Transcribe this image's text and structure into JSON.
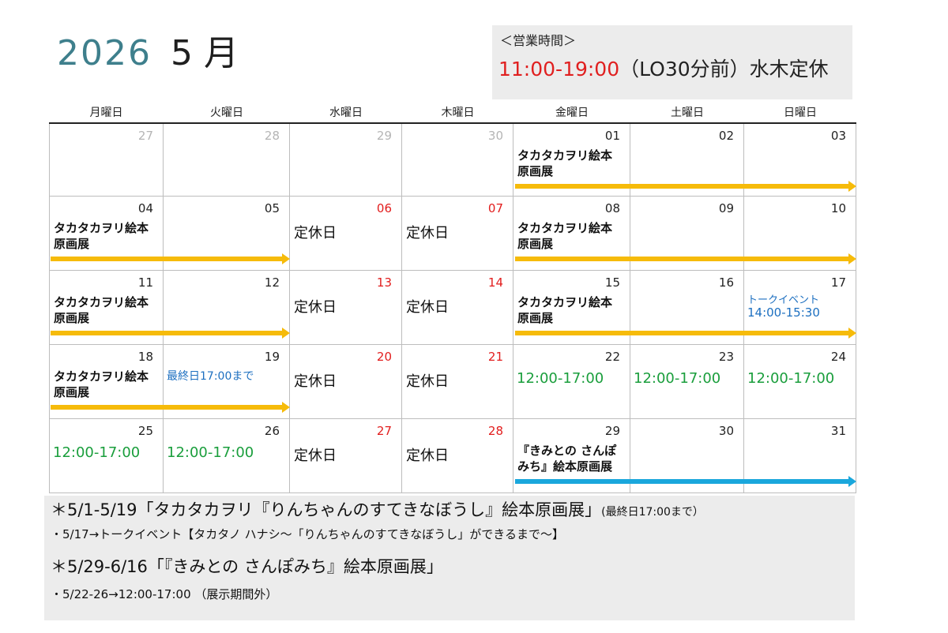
{
  "header": {
    "year": "2026",
    "month": "5 月",
    "hours_label": "＜営業時間＞",
    "hours_time": "11:00-19:00",
    "hours_note": "（LO30分前）水木定休"
  },
  "weekdays": [
    "月曜日",
    "火曜日",
    "水曜日",
    "木曜日",
    "金曜日",
    "土曜日",
    "日曜日"
  ],
  "weeks": [
    [
      {
        "day": "27",
        "style": "grey"
      },
      {
        "day": "28",
        "style": "grey"
      },
      {
        "day": "29",
        "style": "grey"
      },
      {
        "day": "30",
        "style": "grey"
      },
      {
        "day": "01",
        "event": "タカタカヲリ絵本\n原画展"
      },
      {
        "day": "02"
      },
      {
        "day": "03"
      }
    ],
    [
      {
        "day": "04",
        "event": "タカタカヲリ絵本\n原画展"
      },
      {
        "day": "05"
      },
      {
        "day": "06",
        "style": "red",
        "closed": "定休日"
      },
      {
        "day": "07",
        "style": "red",
        "closed": "定休日"
      },
      {
        "day": "08",
        "event": "タカタカヲリ絵本\n原画展"
      },
      {
        "day": "09"
      },
      {
        "day": "10"
      }
    ],
    [
      {
        "day": "11",
        "event": "タカタカヲリ絵本\n原画展"
      },
      {
        "day": "12"
      },
      {
        "day": "13",
        "style": "red",
        "closed": "定休日"
      },
      {
        "day": "14",
        "style": "red",
        "closed": "定休日"
      },
      {
        "day": "15",
        "event": "タカタカヲリ絵本\n原画展"
      },
      {
        "day": "16"
      },
      {
        "day": "17",
        "talk_label": "トークイベント",
        "talk_time": "14:00-15:30"
      }
    ],
    [
      {
        "day": "18",
        "event": "タカタカヲリ絵本\n原画展"
      },
      {
        "day": "19",
        "last_day": "最終日17:00まで"
      },
      {
        "day": "20",
        "style": "red",
        "closed": "定休日"
      },
      {
        "day": "21",
        "style": "red",
        "closed": "定休日"
      },
      {
        "day": "22",
        "hours": "12:00-17:00"
      },
      {
        "day": "23",
        "hours": "12:00-17:00"
      },
      {
        "day": "24",
        "hours": "12:00-17:00"
      }
    ],
    [
      {
        "day": "25",
        "hours": "12:00-17:00"
      },
      {
        "day": "26",
        "hours": "12:00-17:00"
      },
      {
        "day": "27",
        "style": "red",
        "closed": "定休日"
      },
      {
        "day": "28",
        "style": "red",
        "closed": "定休日"
      },
      {
        "day": "29",
        "event": "『きみとの さんぽ\nみち』絵本原画展"
      },
      {
        "day": "30"
      },
      {
        "day": "31"
      }
    ]
  ],
  "arrows": [
    {
      "week": 0,
      "from": 4,
      "to": 6,
      "color": "yellow"
    },
    {
      "week": 1,
      "from": 0,
      "to": 1,
      "color": "yellow"
    },
    {
      "week": 1,
      "from": 4,
      "to": 6,
      "color": "yellow"
    },
    {
      "week": 2,
      "from": 0,
      "to": 1,
      "color": "yellow"
    },
    {
      "week": 2,
      "from": 4,
      "to": 6,
      "color": "yellow"
    },
    {
      "week": 3,
      "from": 0,
      "to": 1,
      "color": "yellow"
    },
    {
      "week": 4,
      "from": 4,
      "to": 6,
      "color": "blue"
    }
  ],
  "notes": {
    "line1_main": "＊5/1-5/19「タカタカヲリ『りんちゃんのすてきなぼうし』絵本原画展」",
    "line1_small": "(最終日17:00まで）",
    "line2": "・5/17→トークイベント【タカタノ ハナシ～「りんちゃんのすてきなぼうし」ができるまで～】",
    "line3": "＊5/29-6/16「『きみとの さんぽみち』絵本原画展」",
    "line4": "・5/22-26→12:00-17:00 （展示期間外）"
  }
}
